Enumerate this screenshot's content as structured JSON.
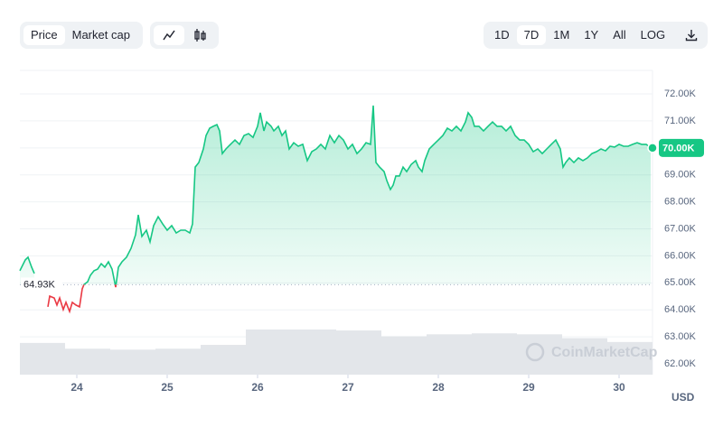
{
  "toolbar": {
    "views": [
      {
        "label": "Price",
        "active": true
      },
      {
        "label": "Market cap"
      }
    ],
    "ranges": [
      {
        "label": "1D"
      },
      {
        "label": "7D",
        "active": true
      },
      {
        "label": "1M"
      },
      {
        "label": "1Y"
      },
      {
        "label": "All"
      }
    ],
    "log_label": "LOG"
  },
  "chart_data": {
    "type": "line",
    "color": "#16c784",
    "below_color": "#ea3943",
    "watermark": "CoinMarketCap",
    "y_unit_label": "USD",
    "xlim": [
      23.37,
      30.37
    ],
    "xticks": [
      24,
      25,
      26,
      27,
      28,
      29,
      30
    ],
    "ylim": [
      61600,
      72870
    ],
    "yticks": [
      {
        "value": 62000,
        "label": "62.00K"
      },
      {
        "value": 63000,
        "label": "63.00K"
      },
      {
        "value": 64000,
        "label": "64.00K"
      },
      {
        "value": 65000,
        "label": "65.00K"
      },
      {
        "value": 66000,
        "label": "66.00K"
      },
      {
        "value": 67000,
        "label": "67.00K"
      },
      {
        "value": 68000,
        "label": "68.00K"
      },
      {
        "value": 69000,
        "label": "69.00K"
      },
      {
        "value": 70000,
        "label": "70.00K"
      },
      {
        "value": 71000,
        "label": "71.00K"
      },
      {
        "value": 72000,
        "label": "72.00K"
      }
    ],
    "grid": true,
    "reference": {
      "value": 64930,
      "label": "64.93K"
    },
    "current_price": {
      "value": 70000,
      "label": "70.00K"
    },
    "x": [
      23.37,
      23.43,
      23.46,
      23.5,
      23.53,
      23.6,
      23.68,
      23.7,
      23.75,
      23.78,
      23.81,
      23.85,
      23.88,
      23.92,
      23.95,
      23.99,
      24.03,
      24.06,
      24.08,
      24.12,
      24.15,
      24.19,
      24.23,
      24.27,
      24.31,
      24.35,
      24.39,
      24.43,
      24.46,
      24.5,
      24.55,
      24.6,
      24.65,
      24.68,
      24.72,
      24.77,
      24.81,
      24.85,
      24.9,
      24.95,
      25.0,
      25.05,
      25.1,
      25.15,
      25.2,
      25.25,
      25.28,
      25.31,
      25.35,
      25.4,
      25.43,
      25.47,
      25.51,
      25.55,
      25.58,
      25.61,
      25.65,
      25.7,
      25.75,
      25.8,
      25.85,
      25.9,
      25.95,
      26.0,
      26.03,
      26.07,
      26.1,
      26.15,
      26.18,
      26.23,
      26.27,
      26.31,
      26.35,
      26.4,
      26.45,
      26.5,
      26.55,
      26.6,
      26.65,
      26.7,
      26.75,
      26.8,
      26.85,
      26.9,
      26.95,
      27.0,
      27.05,
      27.1,
      27.15,
      27.2,
      27.25,
      27.28,
      27.31,
      27.35,
      27.4,
      27.43,
      27.47,
      27.5,
      27.53,
      27.57,
      27.61,
      27.65,
      27.7,
      27.75,
      27.78,
      27.82,
      27.85,
      27.9,
      27.95,
      28.0,
      28.05,
      28.1,
      28.15,
      28.2,
      28.25,
      28.3,
      28.33,
      28.37,
      28.4,
      28.45,
      28.5,
      28.55,
      28.6,
      28.65,
      28.7,
      28.75,
      28.8,
      28.85,
      28.9,
      28.95,
      29.0,
      29.05,
      29.1,
      29.15,
      29.2,
      29.25,
      29.3,
      29.35,
      29.38,
      29.41,
      29.45,
      29.5,
      29.55,
      29.6,
      29.65,
      29.7,
      29.75,
      29.8,
      29.85,
      29.9,
      29.95,
      30.0,
      30.05,
      30.1,
      30.15,
      30.2,
      30.25,
      30.3,
      30.35
    ],
    "values": [
      65450,
      65850,
      65950,
      65580,
      65350,
      null,
      64110,
      64510,
      64440,
      64180,
      64440,
      64010,
      64280,
      63940,
      64280,
      64180,
      64110,
      64780,
      64940,
      65040,
      65280,
      65450,
      65510,
      65710,
      65580,
      65780,
      65510,
      64840,
      65580,
      65780,
      65950,
      66280,
      66780,
      67520,
      66720,
      66950,
      66520,
      67120,
      67450,
      67180,
      66950,
      67120,
      66850,
      66950,
      66950,
      66850,
      67180,
      69290,
      69460,
      69960,
      70460,
      70730,
      70800,
      70860,
      70630,
      69790,
      69960,
      70130,
      70290,
      70130,
      70460,
      70530,
      70390,
      70800,
      71300,
      70630,
      70960,
      70800,
      70630,
      70800,
      70460,
      70630,
      69960,
      70190,
      70060,
      70130,
      69530,
      69860,
      69960,
      70130,
      69960,
      70460,
      70190,
      70460,
      70290,
      69960,
      70130,
      69790,
      69960,
      70190,
      70130,
      71570,
      69460,
      69290,
      69120,
      68790,
      68460,
      68620,
      68960,
      68960,
      69290,
      69120,
      69390,
      69530,
      69290,
      69120,
      69530,
      69960,
      70130,
      70290,
      70460,
      70730,
      70630,
      70800,
      70630,
      70960,
      71300,
      71130,
      70800,
      70800,
      70630,
      70800,
      70960,
      70800,
      70800,
      70630,
      70800,
      70460,
      70290,
      70290,
      70130,
      69860,
      69960,
      69790,
      69960,
      70130,
      70290,
      69960,
      69290,
      69460,
      69630,
      69460,
      69630,
      69530,
      69630,
      69790,
      69860,
      69960,
      69890,
      70060,
      70030,
      70130,
      70060,
      70060,
      70130,
      70190,
      70130,
      70130,
      70000
    ],
    "volume": {
      "color": "#e3e6ea",
      "x": [
        23.37,
        23.87,
        24.37,
        24.87,
        25.37,
        25.87,
        26.37,
        26.87,
        27.37,
        27.87,
        28.37,
        28.87,
        29.37,
        29.87
      ],
      "values": [
        33,
        27,
        26,
        27,
        31,
        47,
        47,
        46,
        40,
        42,
        43,
        42,
        38,
        34
      ]
    }
  }
}
